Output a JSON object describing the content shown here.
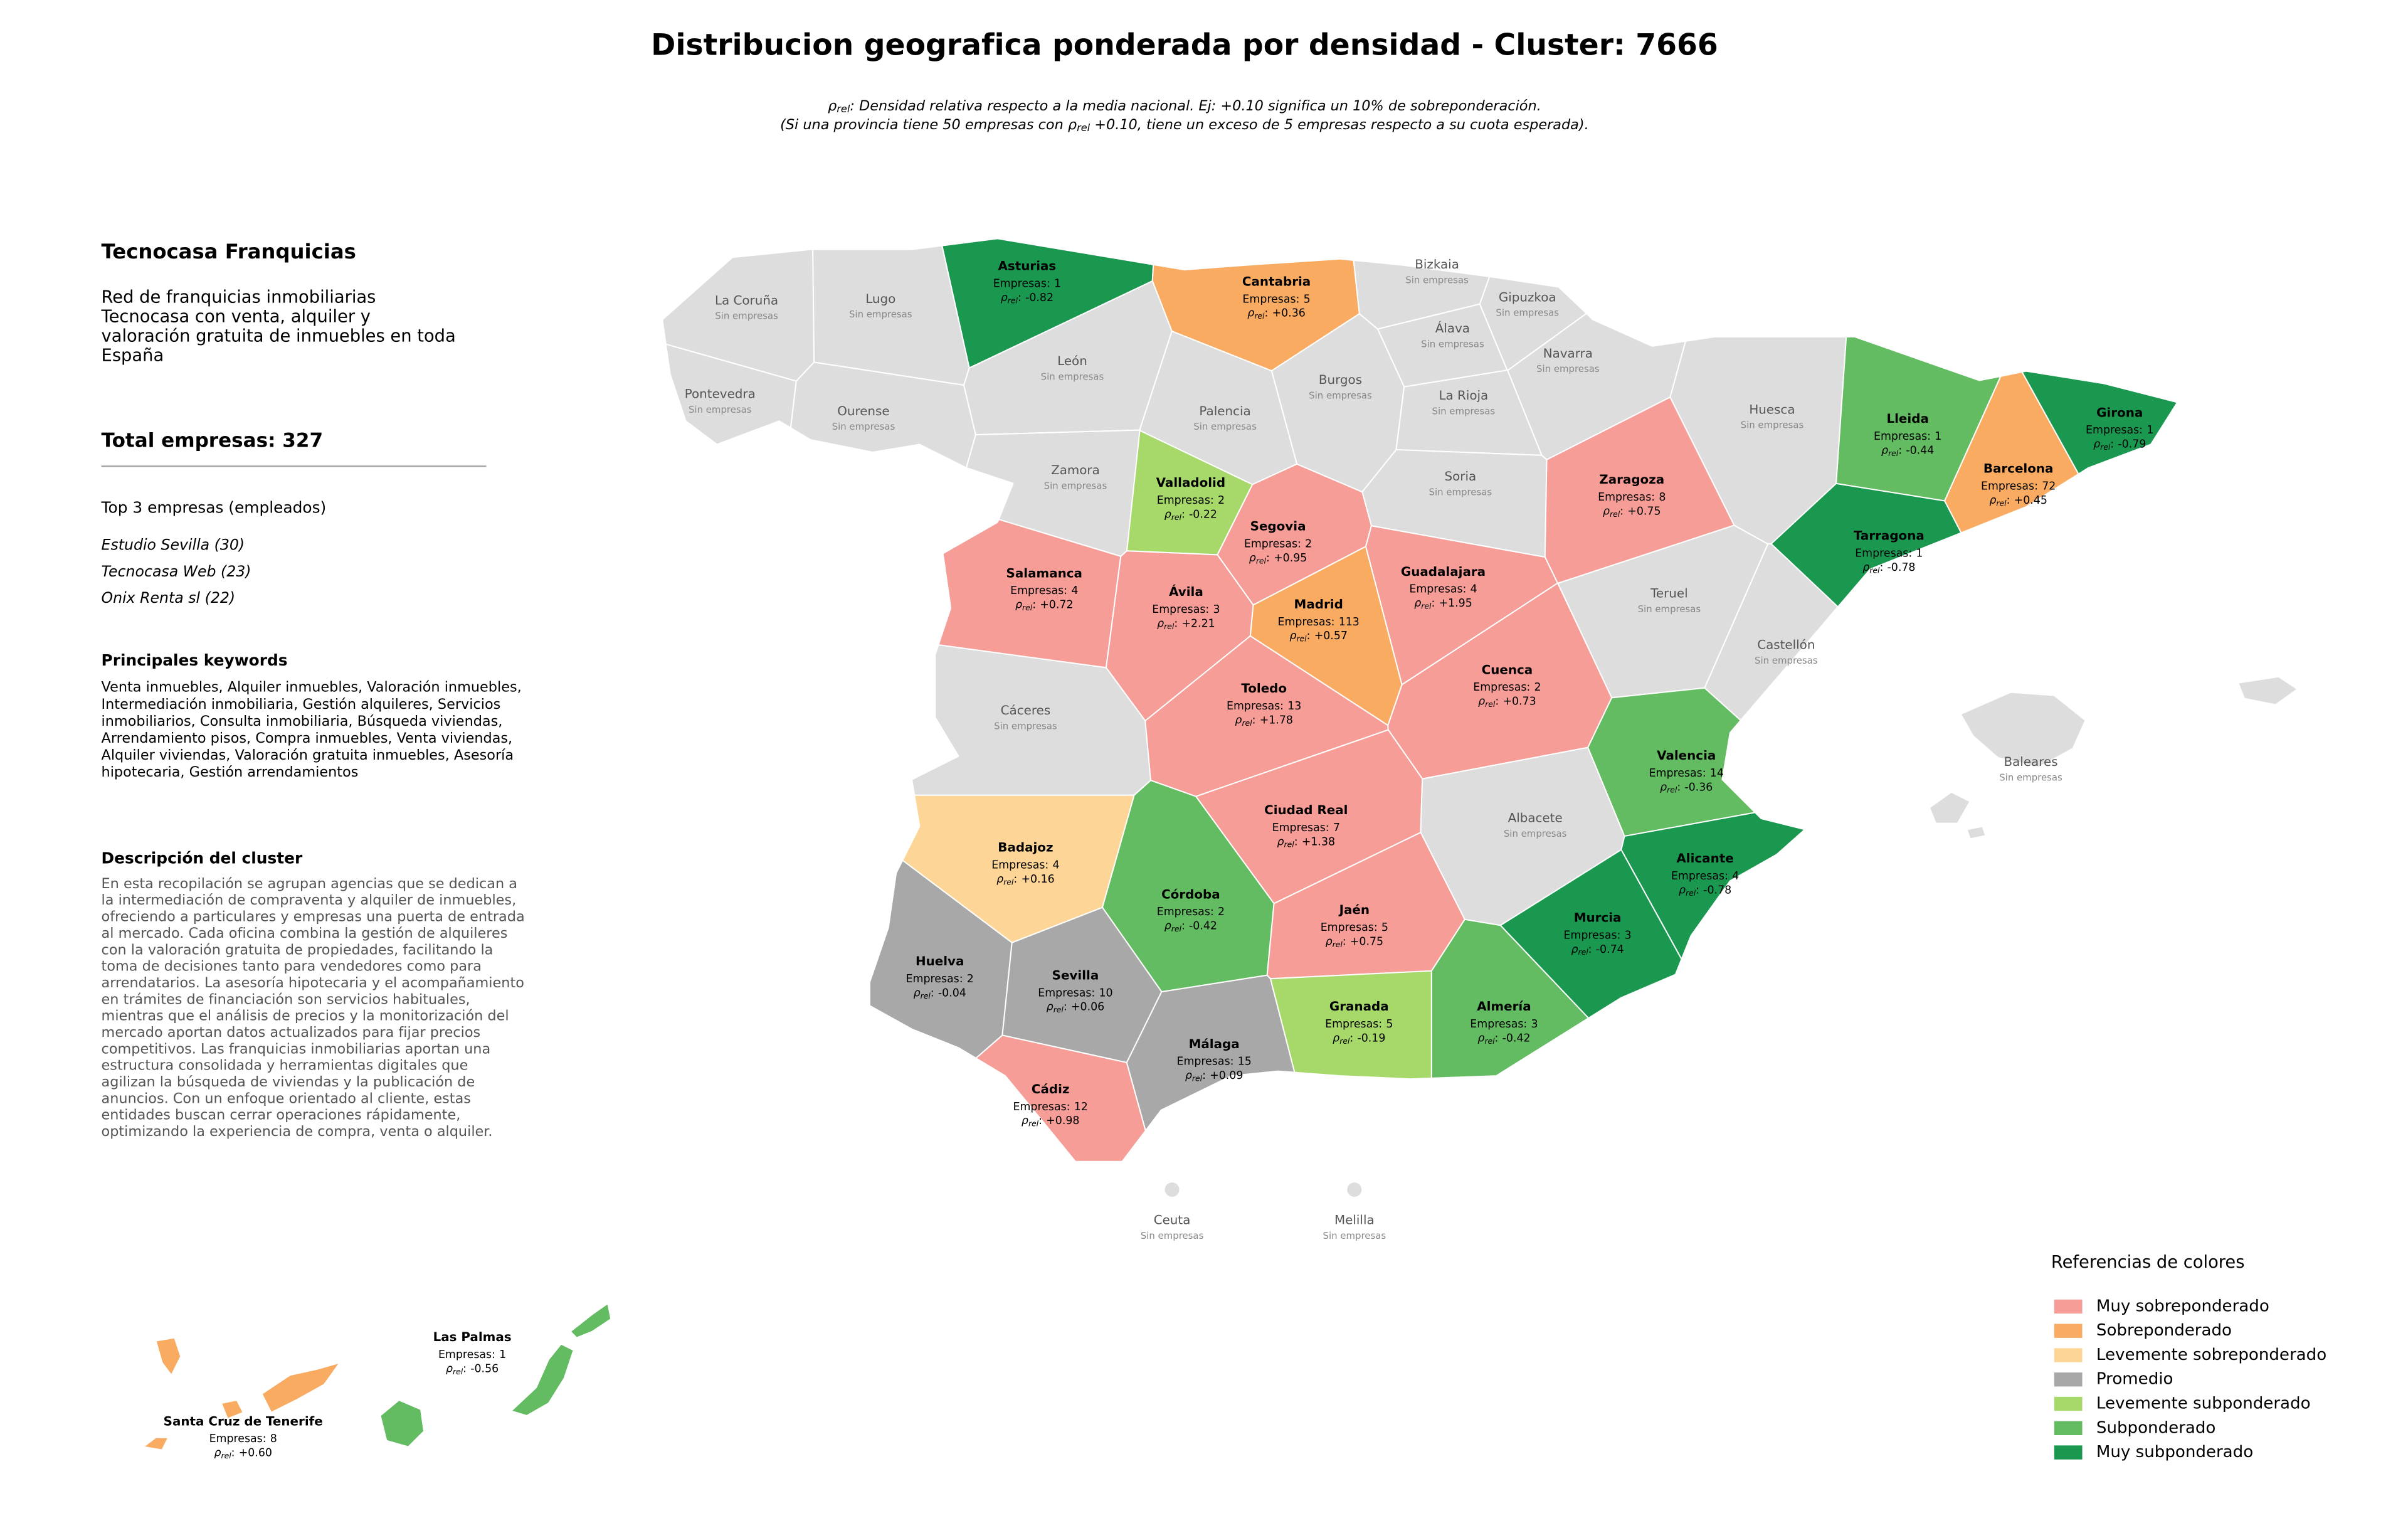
{
  "title": "Distribucion geografica ponderada por densidad - Cluster: 7666",
  "subtitle": [
    {
      "symbol": "ρ",
      "sub": "rel",
      "after": ": Densidad relativa respecto a la media nacional. Ej: +0.10 significa un 10% de sobreponderación."
    },
    {
      "before": "(Si una provincia tiene 50 empresas con ",
      "symbol": "ρ",
      "sub": "rel",
      "after": " +0.10, tiene un exceso de 5 empresas respecto a su cuota esperada)."
    }
  ],
  "panel": {
    "title": "Tecnocasa Franquicias",
    "description": [
      "Red de franquicias inmobiliarias",
      "Tecnocasa con venta, alquiler y",
      "valoración gratuita de inmuebles en toda",
      "España"
    ],
    "total": "Total empresas: 327",
    "top_heading": "Top 3 empresas (empleados)",
    "top": [
      "Estudio Sevilla (30)",
      "Tecnocasa Web (23)",
      "Onix Renta sl (22)"
    ],
    "keywords_heading": "Principales keywords",
    "keywords": [
      "Venta inmuebles, Alquiler inmuebles, Valoración inmuebles,",
      "Intermediación inmobiliaria, Gestión alquileres, Servicios",
      "inmobiliarios, Consulta inmobiliaria, Búsqueda viviendas,",
      "Arrendamiento pisos, Compra inmuebles, Venta viviendas,",
      "Alquiler viviendas, Valoración gratuita inmuebles, Asesoría",
      "hipotecaria, Gestión arrendamientos"
    ],
    "cluster_heading": "Descripción del cluster",
    "cluster_text": [
      "En esta recopilación se agrupan agencias que se dedican a",
      "la intermediación de compraventa y alquiler de inmuebles,",
      "ofreciendo a particulares y empresas una puerta de entrada",
      "al mercado. Cada oficina combina la gestión de alquileres",
      "con la valoración gratuita de propiedades, facilitando la",
      "toma de decisiones tanto para vendedores como para",
      "arrendatarios. La asesoría hipotecaria y el acompañamiento",
      "en trámites de financiación son servicios habituales,",
      "mientras que el análisis de precios y la monitorización del",
      "mercado aportan datos actualizados para fijar precios",
      "competitivos. Las franquicias inmobiliarias aportan una",
      "estructura consolidada y herramientas digitales que",
      "agilizan la búsqueda de viviendas y la publicación de",
      "anuncios. Con un enfoque orientado al cliente, estas",
      "entidades buscan cerrar operaciones rápidamente,",
      "optimizando la experiencia de compra, venta o alquiler."
    ]
  },
  "map": {
    "labels": {
      "companies": "Empresas:",
      "rho_symbol": "ρ",
      "rho_sub": "rel",
      "rho_sep": ":",
      "none": "Sin empresas"
    },
    "no_data_color": "#dddddd",
    "provinces": [
      {
        "name": "Asturias",
        "companies": 1,
        "rho": -0.82,
        "rho_label": "-0.82",
        "category": 6
      },
      {
        "name": "Cantabria",
        "companies": 5,
        "rho": 0.36,
        "rho_label": "+0.36",
        "category": 1
      },
      {
        "name": "Bizkaia"
      },
      {
        "name": "Gipuzkoa"
      },
      {
        "name": "Álava"
      },
      {
        "name": "Navarra"
      },
      {
        "name": "La Coruña"
      },
      {
        "name": "Lugo"
      },
      {
        "name": "Pontevedra"
      },
      {
        "name": "Ourense"
      },
      {
        "name": "León"
      },
      {
        "name": "Palencia"
      },
      {
        "name": "Burgos"
      },
      {
        "name": "La Rioja"
      },
      {
        "name": "Zamora"
      },
      {
        "name": "Valladolid",
        "companies": 2,
        "rho": -0.22,
        "rho_label": "-0.22",
        "category": 4
      },
      {
        "name": "Soria"
      },
      {
        "name": "Segovia",
        "companies": 2,
        "rho": 0.95,
        "rho_label": "+0.95",
        "category": 0
      },
      {
        "name": "Zaragoza",
        "companies": 8,
        "rho": 0.75,
        "rho_label": "+0.75",
        "category": 0
      },
      {
        "name": "Huesca"
      },
      {
        "name": "Lleida",
        "companies": 1,
        "rho": -0.44,
        "rho_label": "-0.44",
        "category": 5
      },
      {
        "name": "Girona",
        "companies": 1,
        "rho": -0.79,
        "rho_label": "-0.79",
        "category": 6
      },
      {
        "name": "Barcelona",
        "companies": 72,
        "rho": 0.45,
        "rho_label": "+0.45",
        "category": 1
      },
      {
        "name": "Tarragona",
        "companies": 1,
        "rho": -0.78,
        "rho_label": "-0.78",
        "category": 6
      },
      {
        "name": "Salamanca",
        "companies": 4,
        "rho": 0.72,
        "rho_label": "+0.72",
        "category": 0
      },
      {
        "name": "Ávila",
        "companies": 3,
        "rho": 2.21,
        "rho_label": "+2.21",
        "category": 0
      },
      {
        "name": "Madrid",
        "companies": 113,
        "rho": 0.57,
        "rho_label": "+0.57",
        "category": 1
      },
      {
        "name": "Guadalajara",
        "companies": 4,
        "rho": 1.95,
        "rho_label": "+1.95",
        "category": 0
      },
      {
        "name": "Teruel"
      },
      {
        "name": "Castellón"
      },
      {
        "name": "Cáceres"
      },
      {
        "name": "Toledo",
        "companies": 13,
        "rho": 1.78,
        "rho_label": "+1.78",
        "category": 0
      },
      {
        "name": "Cuenca",
        "companies": 2,
        "rho": 0.73,
        "rho_label": "+0.73",
        "category": 0
      },
      {
        "name": "Valencia",
        "companies": 14,
        "rho": -0.36,
        "rho_label": "-0.36",
        "category": 5
      },
      {
        "name": "Badajoz",
        "companies": 4,
        "rho": 0.16,
        "rho_label": "+0.16",
        "category": 2
      },
      {
        "name": "Ciudad Real",
        "companies": 7,
        "rho": 1.38,
        "rho_label": "+1.38",
        "category": 0
      },
      {
        "name": "Albacete"
      },
      {
        "name": "Alicante",
        "companies": 4,
        "rho": -0.78,
        "rho_label": "-0.78",
        "category": 6
      },
      {
        "name": "Córdoba",
        "companies": 2,
        "rho": -0.42,
        "rho_label": "-0.42",
        "category": 5
      },
      {
        "name": "Jaén",
        "companies": 5,
        "rho": 0.75,
        "rho_label": "+0.75",
        "category": 0
      },
      {
        "name": "Murcia",
        "companies": 3,
        "rho": -0.74,
        "rho_label": "-0.74",
        "category": 6
      },
      {
        "name": "Huelva",
        "companies": 2,
        "rho": -0.04,
        "rho_label": "-0.04",
        "category": 3
      },
      {
        "name": "Sevilla",
        "companies": 10,
        "rho": 0.06,
        "rho_label": "+0.06",
        "category": 3
      },
      {
        "name": "Granada",
        "companies": 5,
        "rho": -0.19,
        "rho_label": "-0.19",
        "category": 4
      },
      {
        "name": "Almería",
        "companies": 3,
        "rho": -0.42,
        "rho_label": "-0.42",
        "category": 5
      },
      {
        "name": "Málaga",
        "companies": 15,
        "rho": 0.09,
        "rho_label": "+0.09",
        "category": 3
      },
      {
        "name": "Cádiz",
        "companies": 12,
        "rho": 0.98,
        "rho_label": "+0.98",
        "category": 0
      },
      {
        "name": "Baleares"
      },
      {
        "name": "Ceuta"
      },
      {
        "name": "Melilla"
      },
      {
        "name": "Las Palmas",
        "companies": 1,
        "rho": -0.56,
        "rho_label": "-0.56",
        "category": 5
      },
      {
        "name": "Santa Cruz de Tenerife",
        "companies": 8,
        "rho": 0.6,
        "rho_label": "+0.60",
        "category": 1
      }
    ]
  },
  "legend": {
    "title": "Referencias de colores",
    "items": [
      {
        "name": "Muy sobreponderado",
        "color": "#f59d96"
      },
      {
        "name": "Sobreponderado",
        "color": "#f9ab62"
      },
      {
        "name": "Levemente sobreponderado",
        "color": "#fcd597"
      },
      {
        "name": "Promedio",
        "color": "#a8a8a8"
      },
      {
        "name": "Levemente subponderado",
        "color": "#a6d96a"
      },
      {
        "name": "Subponderado",
        "color": "#63bb62"
      },
      {
        "name": "Muy subponderado",
        "color": "#1a9850"
      }
    ]
  }
}
